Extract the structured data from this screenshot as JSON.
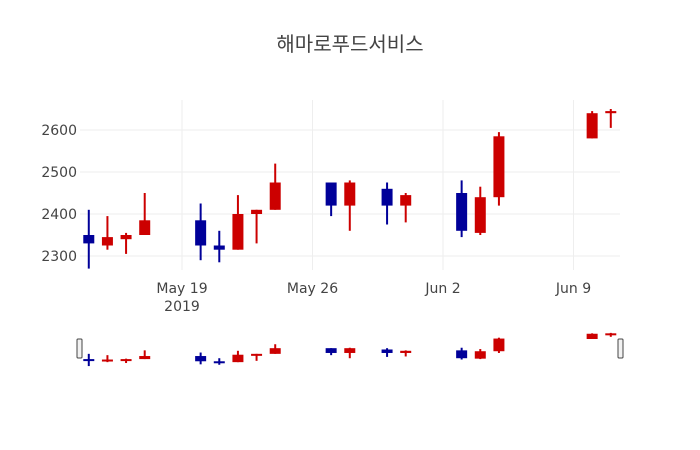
{
  "chart_data": {
    "type": "candlestick",
    "title": "해마로푸드서비스",
    "xlabel": "",
    "ylabel": "",
    "colors": {
      "increasing": "#cc0000",
      "decreasing": "#000099"
    },
    "yticks": [
      2300,
      2400,
      2500,
      2600
    ],
    "ytick_labels": [
      "2300",
      "2400",
      "2500",
      "2600"
    ],
    "ylim": [
      2248,
      2683
    ],
    "xticks": [
      {
        "date": "2019-05-19",
        "label": "May 19",
        "sublabel": "2019"
      },
      {
        "date": "2019-05-26",
        "label": "May 26",
        "sublabel": ""
      },
      {
        "date": "2019-06-02",
        "label": "Jun 2",
        "sublabel": ""
      },
      {
        "date": "2019-06-09",
        "label": "Jun 9",
        "sublabel": ""
      }
    ],
    "xlim": [
      "2019-05-13T12:00",
      "2019-06-11T12:00"
    ],
    "grid": true,
    "rangeslider": true,
    "categories": [
      "2019-05-14",
      "2019-05-15",
      "2019-05-16",
      "2019-05-17",
      "2019-05-20",
      "2019-05-21",
      "2019-05-22",
      "2019-05-23",
      "2019-05-24",
      "2019-05-27",
      "2019-05-28",
      "2019-05-30",
      "2019-05-31",
      "2019-06-03",
      "2019-06-04",
      "2019-06-05",
      "2019-06-10",
      "2019-06-11"
    ],
    "series": [
      {
        "name": "open",
        "values": [
          2350,
          2325,
          2340,
          2350,
          2385,
          2325,
          2315,
          2400,
          2410,
          2475,
          2420,
          2460,
          2420,
          2450,
          2355,
          2440,
          2580,
          2640
        ]
      },
      {
        "name": "high",
        "values": [
          2410,
          2395,
          2355,
          2450,
          2425,
          2360,
          2445,
          2410,
          2520,
          2475,
          2480,
          2475,
          2450,
          2480,
          2465,
          2595,
          2645,
          2650
        ]
      },
      {
        "name": "low",
        "values": [
          2270,
          2315,
          2305,
          2350,
          2290,
          2285,
          2315,
          2330,
          2410,
          2395,
          2360,
          2375,
          2380,
          2345,
          2350,
          2420,
          2580,
          2605
        ]
      },
      {
        "name": "close",
        "values": [
          2330,
          2345,
          2350,
          2385,
          2325,
          2315,
          2400,
          2410,
          2475,
          2420,
          2475,
          2420,
          2445,
          2360,
          2440,
          2585,
          2640,
          2645
        ]
      }
    ]
  }
}
